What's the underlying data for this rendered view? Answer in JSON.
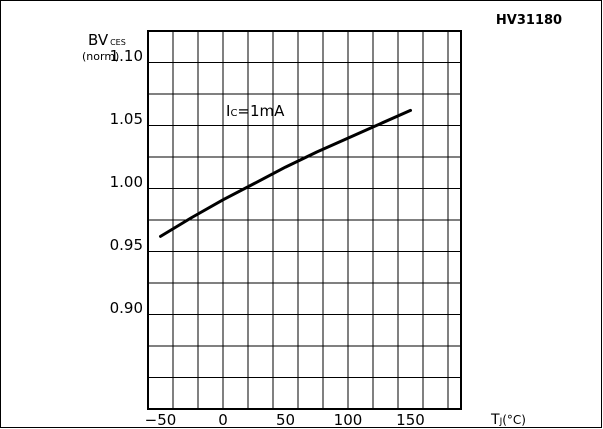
{
  "chart_data": {
    "type": "line",
    "id_label": "HV31180",
    "ylabel": {
      "main": "BV",
      "sub": "CES",
      "unit": "(norm)"
    },
    "xlabel": {
      "main": "T",
      "sub": "J",
      "unit": "(°C)"
    },
    "annotation": {
      "main": "I",
      "sub": "C",
      "rest": "=1mA"
    },
    "xlim": [
      -50,
      150
    ],
    "ylim": [
      0.85,
      1.15
    ],
    "x_ticks": [
      {
        "value": -50,
        "label": "−50"
      },
      {
        "value": 0,
        "label": "0"
      },
      {
        "value": 50,
        "label": "50"
      },
      {
        "value": 100,
        "label": "100"
      },
      {
        "value": 150,
        "label": "150"
      }
    ],
    "y_ticks": [
      {
        "value": 0.9,
        "label": "0.90"
      },
      {
        "value": 0.95,
        "label": "0.95"
      },
      {
        "value": 1.0,
        "label": "1.00"
      },
      {
        "value": 1.05,
        "label": "1.05"
      },
      {
        "value": 1.1,
        "label": "1.10"
      }
    ],
    "grid": true,
    "series": [
      {
        "x": [
          -50,
          -25,
          0,
          25,
          50,
          75,
          100,
          125,
          150
        ],
        "y": [
          0.957,
          0.972,
          0.986,
          0.999,
          1.012,
          1.024,
          1.035,
          1.046,
          1.057
        ]
      }
    ]
  }
}
